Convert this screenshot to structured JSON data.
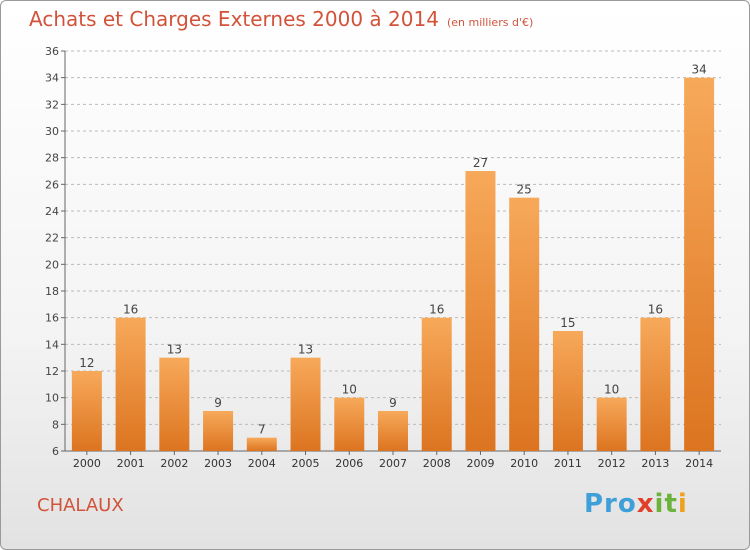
{
  "title": "Achats et Charges Externes 2000 à 2014",
  "subtitle": "(en milliers d'€)",
  "commune": "CHALAUX",
  "logo": {
    "text": "Proxiti",
    "parts": [
      "Pro",
      "x",
      "it",
      "i"
    ]
  },
  "colors": {
    "bar": "#f09a3e",
    "title": "#d2533a",
    "grid": "#bbbbbb"
  },
  "chart_data": {
    "type": "bar",
    "title": "Achats et Charges Externes 2000 à 2014",
    "subtitle": "(en milliers d'€)",
    "categories": [
      "2000",
      "2001",
      "2002",
      "2003",
      "2004",
      "2005",
      "2006",
      "2007",
      "2008",
      "2009",
      "2010",
      "2011",
      "2012",
      "2013",
      "2014"
    ],
    "values": [
      12,
      16,
      13,
      9,
      7,
      13,
      10,
      9,
      16,
      27,
      25,
      15,
      10,
      16,
      34
    ],
    "ylim": [
      6,
      36
    ],
    "yticks": [
      6,
      8,
      10,
      12,
      14,
      16,
      18,
      20,
      22,
      24,
      26,
      28,
      30,
      32,
      34,
      36
    ],
    "grid": true,
    "data_labels": true
  }
}
